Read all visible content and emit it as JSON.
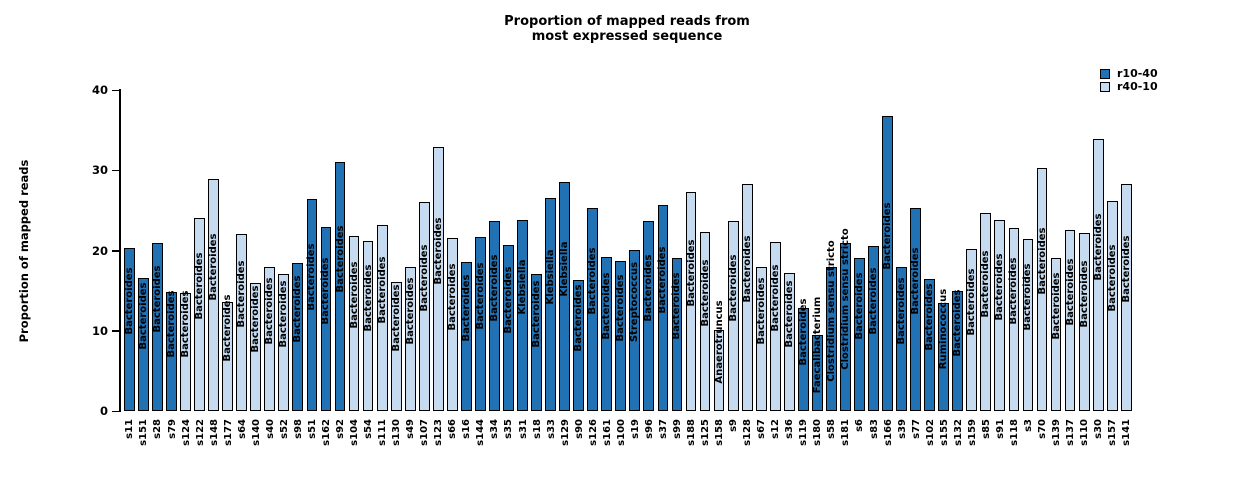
{
  "title": {
    "line1": "Proportion of mapped reads from",
    "line2": "most expressed sequence"
  },
  "y_axis": {
    "label": "Proportion of mapped reads",
    "ticks": [
      0,
      10,
      20,
      30,
      40
    ]
  },
  "legend": [
    {
      "label": "r10-40",
      "color": "#2171b5"
    },
    {
      "label": "r40-10",
      "color": "#c6dbef"
    }
  ],
  "chart_data": {
    "type": "bar",
    "title": "Proportion of mapped reads from most expressed sequence",
    "xlabel": "",
    "ylabel": "Proportion of mapped reads",
    "ylim": [
      0,
      40
    ],
    "grid": false,
    "legend_position": "top-right",
    "series_colors": {
      "r10-40": "#2171b5",
      "r40-10": "#c6dbef"
    },
    "bar_annotation": "most expressed taxon written vertically on each bar",
    "bars": [
      {
        "sample": "s11",
        "value": 20.3,
        "group": "r10-40",
        "taxon": "Bacteroides"
      },
      {
        "sample": "s151",
        "value": 16.6,
        "group": "r10-40",
        "taxon": "Bacteroides"
      },
      {
        "sample": "s28",
        "value": 20.9,
        "group": "r10-40",
        "taxon": "Bacteroides"
      },
      {
        "sample": "s79",
        "value": 14.8,
        "group": "r10-40",
        "taxon": "Bacteroides"
      },
      {
        "sample": "s124",
        "value": 14.7,
        "group": "r40-10",
        "taxon": "Bacteroides"
      },
      {
        "sample": "s122",
        "value": 24.1,
        "group": "r40-10",
        "taxon": "Bacteroides"
      },
      {
        "sample": "s148",
        "value": 28.9,
        "group": "r40-10",
        "taxon": "Bacteroides"
      },
      {
        "sample": "s177",
        "value": 13.6,
        "group": "r40-10",
        "taxon": "Bacteroides"
      },
      {
        "sample": "s64",
        "value": 22.1,
        "group": "r40-10",
        "taxon": "Bacteroides"
      },
      {
        "sample": "s140",
        "value": 16.0,
        "group": "r40-10",
        "taxon": "Bacteroides"
      },
      {
        "sample": "s40",
        "value": 17.9,
        "group": "r40-10",
        "taxon": "Bacteroides"
      },
      {
        "sample": "s52",
        "value": 17.1,
        "group": "r40-10",
        "taxon": "Bacteroides"
      },
      {
        "sample": "s98",
        "value": 18.4,
        "group": "r10-40",
        "taxon": "Bacteroides"
      },
      {
        "sample": "s51",
        "value": 26.4,
        "group": "r10-40",
        "taxon": "Bacteroides"
      },
      {
        "sample": "s162",
        "value": 22.9,
        "group": "r10-40",
        "taxon": "Bacteroides"
      },
      {
        "sample": "s92",
        "value": 31.0,
        "group": "r10-40",
        "taxon": "Bacteroides"
      },
      {
        "sample": "s104",
        "value": 21.8,
        "group": "r40-10",
        "taxon": "Bacteroides"
      },
      {
        "sample": "s54",
        "value": 21.2,
        "group": "r40-10",
        "taxon": "Bacteroides"
      },
      {
        "sample": "s111",
        "value": 23.2,
        "group": "r40-10",
        "taxon": "Bacteroides"
      },
      {
        "sample": "s130",
        "value": 16.1,
        "group": "r40-10",
        "taxon": "Bacteroides"
      },
      {
        "sample": "s49",
        "value": 18.0,
        "group": "r40-10",
        "taxon": "Bacteroides"
      },
      {
        "sample": "s107",
        "value": 26.1,
        "group": "r40-10",
        "taxon": "Bacteroides"
      },
      {
        "sample": "s123",
        "value": 32.9,
        "group": "r40-10",
        "taxon": "Bacteroides"
      },
      {
        "sample": "s66",
        "value": 21.5,
        "group": "r40-10",
        "taxon": "Bacteroides"
      },
      {
        "sample": "s16",
        "value": 18.6,
        "group": "r10-40",
        "taxon": "Bacteroides"
      },
      {
        "sample": "s144",
        "value": 21.7,
        "group": "r10-40",
        "taxon": "Bacteroides"
      },
      {
        "sample": "s34",
        "value": 23.7,
        "group": "r10-40",
        "taxon": "Bacteroides"
      },
      {
        "sample": "s35",
        "value": 20.7,
        "group": "r10-40",
        "taxon": "Bacteroides"
      },
      {
        "sample": "s31",
        "value": 23.8,
        "group": "r10-40",
        "taxon": "Klebsiella"
      },
      {
        "sample": "s18",
        "value": 17.1,
        "group": "r10-40",
        "taxon": "Bacteroides"
      },
      {
        "sample": "s33",
        "value": 26.5,
        "group": "r10-40",
        "taxon": "Klebsiella"
      },
      {
        "sample": "s129",
        "value": 28.5,
        "group": "r10-40",
        "taxon": "Klebsiella"
      },
      {
        "sample": "s90",
        "value": 16.3,
        "group": "r10-40",
        "taxon": "Bacteroides"
      },
      {
        "sample": "s126",
        "value": 25.3,
        "group": "r10-40",
        "taxon": "Bacteroides"
      },
      {
        "sample": "s161",
        "value": 19.2,
        "group": "r10-40",
        "taxon": "Bacteroides"
      },
      {
        "sample": "s100",
        "value": 18.7,
        "group": "r10-40",
        "taxon": "Bacteroides"
      },
      {
        "sample": "s19",
        "value": 20.1,
        "group": "r10-40",
        "taxon": "Streptococcus"
      },
      {
        "sample": "s96",
        "value": 23.7,
        "group": "r10-40",
        "taxon": "Bacteroides"
      },
      {
        "sample": "s37",
        "value": 25.7,
        "group": "r10-40",
        "taxon": "Bacteroides"
      },
      {
        "sample": "s99",
        "value": 19.1,
        "group": "r10-40",
        "taxon": "Bacteroides"
      },
      {
        "sample": "s188",
        "value": 27.3,
        "group": "r40-10",
        "taxon": "Bacteroides"
      },
      {
        "sample": "s125",
        "value": 22.3,
        "group": "r40-10",
        "taxon": "Bacteroides"
      },
      {
        "sample": "s158",
        "value": 10.1,
        "group": "r40-10",
        "taxon": "Anaerotruncus"
      },
      {
        "sample": "s9",
        "value": 23.7,
        "group": "r40-10",
        "taxon": "Bacteroides"
      },
      {
        "sample": "s128",
        "value": 28.3,
        "group": "r40-10",
        "taxon": "Bacteroides"
      },
      {
        "sample": "s67",
        "value": 17.9,
        "group": "r40-10",
        "taxon": "Bacteroides"
      },
      {
        "sample": "s12",
        "value": 21.1,
        "group": "r40-10",
        "taxon": "Bacteroides"
      },
      {
        "sample": "s36",
        "value": 17.2,
        "group": "r40-10",
        "taxon": "Bacteroides"
      },
      {
        "sample": "s119",
        "value": 12.8,
        "group": "r10-40",
        "taxon": "Bacteroides"
      },
      {
        "sample": "s180",
        "value": 9.5,
        "group": "r10-40",
        "taxon": "Faecalibacterium"
      },
      {
        "sample": "s58",
        "value": 18.0,
        "group": "r10-40",
        "taxon": "Clostridium sensu stricto"
      },
      {
        "sample": "s181",
        "value": 20.9,
        "group": "r10-40",
        "taxon": "Clostridium sensu stricto"
      },
      {
        "sample": "s6",
        "value": 19.1,
        "group": "r10-40",
        "taxon": "Bacteroides"
      },
      {
        "sample": "s83",
        "value": 20.5,
        "group": "r10-40",
        "taxon": "Bacteroides"
      },
      {
        "sample": "s166",
        "value": 36.7,
        "group": "r10-40",
        "taxon": "Bacteroides"
      },
      {
        "sample": "s39",
        "value": 18.0,
        "group": "r10-40",
        "taxon": "Bacteroides"
      },
      {
        "sample": "s77",
        "value": 25.3,
        "group": "r10-40",
        "taxon": "Bacteroides"
      },
      {
        "sample": "s102",
        "value": 16.5,
        "group": "r10-40",
        "taxon": "Bacteroides"
      },
      {
        "sample": "s155",
        "value": 13.5,
        "group": "r10-40",
        "taxon": "Ruminococcus"
      },
      {
        "sample": "s132",
        "value": 15.0,
        "group": "r10-40",
        "taxon": "Bacteroides"
      },
      {
        "sample": "s159",
        "value": 20.2,
        "group": "r40-10",
        "taxon": "Bacteroides"
      },
      {
        "sample": "s85",
        "value": 24.7,
        "group": "r40-10",
        "taxon": "Bacteroides"
      },
      {
        "sample": "s91",
        "value": 23.8,
        "group": "r40-10",
        "taxon": "Bacteroides"
      },
      {
        "sample": "s118",
        "value": 22.8,
        "group": "r40-10",
        "taxon": "Bacteroides"
      },
      {
        "sample": "s3",
        "value": 21.4,
        "group": "r40-10",
        "taxon": "Bacteroides"
      },
      {
        "sample": "s70",
        "value": 30.3,
        "group": "r40-10",
        "taxon": "Bacteroides"
      },
      {
        "sample": "s139",
        "value": 19.1,
        "group": "r40-10",
        "taxon": "Bacteroides"
      },
      {
        "sample": "s137",
        "value": 22.6,
        "group": "r40-10",
        "taxon": "Bacteroides"
      },
      {
        "sample": "s110",
        "value": 22.2,
        "group": "r40-10",
        "taxon": "Bacteroides"
      },
      {
        "sample": "s30",
        "value": 33.9,
        "group": "r40-10",
        "taxon": "Bacteroides"
      },
      {
        "sample": "s157",
        "value": 26.2,
        "group": "r40-10",
        "taxon": "Bacteroides"
      },
      {
        "sample": "s141",
        "value": 28.3,
        "group": "r40-10",
        "taxon": "Bacteroides"
      }
    ]
  }
}
